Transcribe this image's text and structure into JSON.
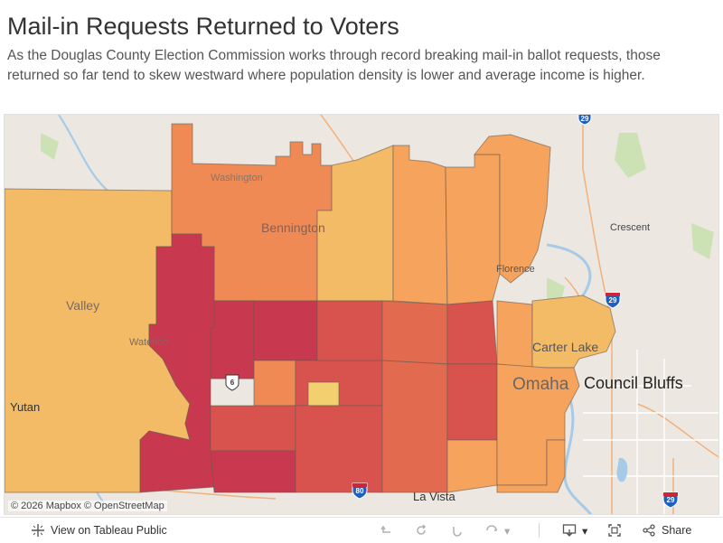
{
  "title": "Mail-in Requests Returned to Voters",
  "subtitle": "As the Douglas County Election Commission works through record breaking mail-in ballot requests, those returned so far tend to skew westward where population density is lower and average income is higher.",
  "map": {
    "place_labels": {
      "washington": "Washington",
      "bennington": "Bennington",
      "valley": "Valley",
      "waterloo": "Waterloo",
      "yutan": "Yutan",
      "crescent": "Crescent",
      "florence": "Florence",
      "carter_lake": "Carter Lake",
      "omaha": "Omaha",
      "council_bluffs": "Council Bluffs",
      "la_vista": "La Vista"
    },
    "shields": {
      "i29_north": "29",
      "i29_mid": "29",
      "i29_south": "29",
      "us6": "6",
      "i80": "80"
    },
    "attribution": "© 2026 Mapbox  © OpenStreetMap",
    "colors": {
      "high": "#c8394f",
      "high_mid": "#d9534e",
      "mid": "#e26b4f",
      "mid_low": "#ef8a55",
      "low": "#f6a45d",
      "lowest": "#f4bb66",
      "very_low": "#f2d06f",
      "border": "#6b5a4e",
      "basemap": "#ece8e1",
      "river": "#a6cbe8"
    }
  },
  "toolbar": {
    "view_label": "View on Tableau Public",
    "share_label": "Share"
  }
}
